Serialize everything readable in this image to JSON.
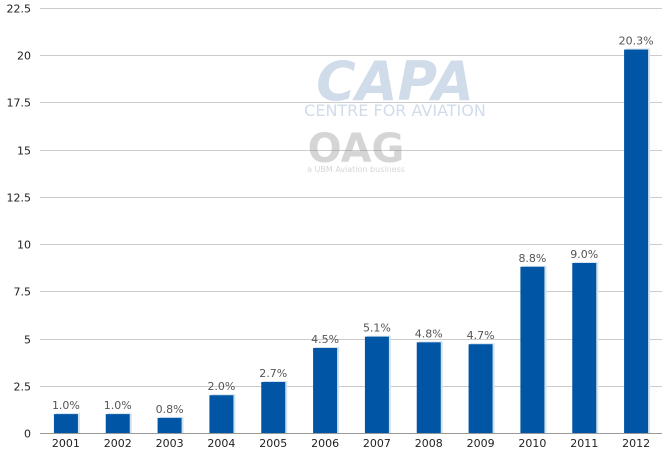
{
  "chart_data": {
    "type": "bar",
    "categories": [
      "2001",
      "2002",
      "2003",
      "2004",
      "2005",
      "2006",
      "2007",
      "2008",
      "2009",
      "2010",
      "2011",
      "2012"
    ],
    "values": [
      1.0,
      1.0,
      0.8,
      2.0,
      2.7,
      4.5,
      5.1,
      4.8,
      4.7,
      8.8,
      9.0,
      20.3
    ],
    "data_labels": [
      "1.0%",
      "1.0%",
      "0.8%",
      "2.0%",
      "2.7%",
      "4.5%",
      "5.1%",
      "4.8%",
      "4.7%",
      "8.8%",
      "9.0%",
      "20.3%"
    ],
    "yticks": [
      "0",
      "2.5",
      "5",
      "7.5",
      "10",
      "12.5",
      "15",
      "17.5",
      "20",
      "22.5"
    ],
    "ytick_values": [
      0,
      2.5,
      5,
      7.5,
      10,
      12.5,
      15,
      17.5,
      20,
      22.5
    ],
    "ylim": [
      0,
      22.5
    ],
    "grid": true,
    "title": "",
    "xlabel": "",
    "ylabel": "",
    "colors": {
      "bar": "#0055a4",
      "bar_shadow": "#d2e3ef",
      "grid": "#cccccc"
    }
  },
  "watermark": {
    "logo_main": "CAPA",
    "logo_sub": "CENTRE FOR AVIATION",
    "logo_oag": "OAG",
    "logo_oag_sub": "a UBM Aviation business"
  }
}
